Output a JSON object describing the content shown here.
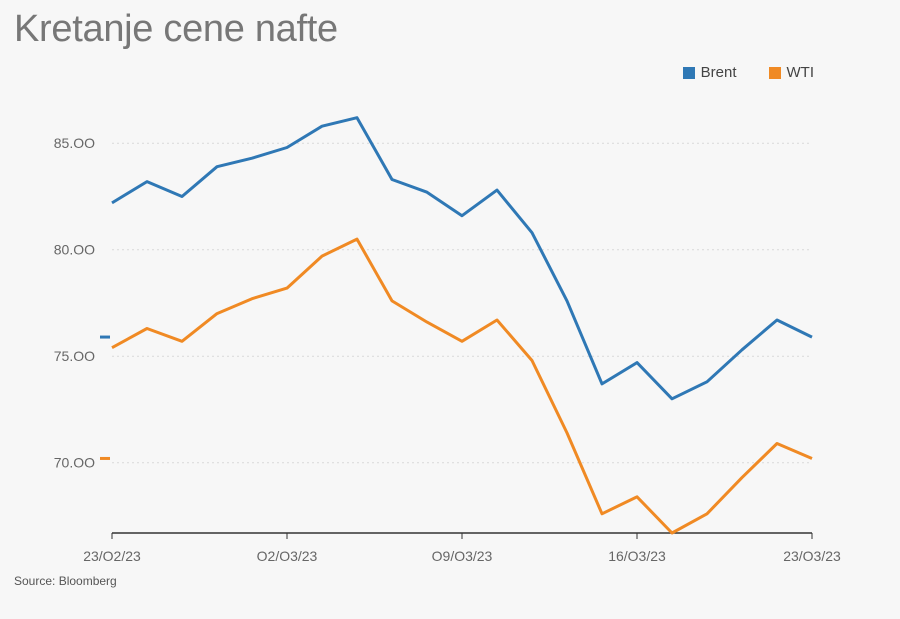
{
  "title": "Kretanje cene nafte",
  "source": "Source: Bloomberg",
  "chart_data": {
    "type": "line",
    "title": "Kretanje cene nafte",
    "x": [
      "23/02/23",
      "24/02/23",
      "27/02/23",
      "28/02/23",
      "01/03/23",
      "02/03/23",
      "03/03/23",
      "06/03/23",
      "07/03/23",
      "08/03/23",
      "09/03/23",
      "10/03/23",
      "13/03/23",
      "14/03/23",
      "15/03/23",
      "16/03/23",
      "17/03/23",
      "20/03/23",
      "21/03/23",
      "22/03/23",
      "23/03/23"
    ],
    "x_tick_labels": [
      "23/O2/23",
      "O2/O3/23",
      "O9/O3/23",
      "16/O3/23",
      "23/O3/23"
    ],
    "y_tick_labels": [
      "85.OO",
      "80.OO",
      "75.OO",
      "70.OO"
    ],
    "y_ticks": [
      85,
      80,
      75,
      70
    ],
    "ylim": [
      66.7,
      87.5
    ],
    "grid": true,
    "legend_position": "top-right",
    "series": [
      {
        "name": "Brent",
        "color": "#2f78b5",
        "values": [
          82.2,
          83.2,
          82.5,
          83.9,
          84.3,
          84.8,
          85.8,
          86.2,
          83.3,
          82.7,
          81.6,
          82.8,
          80.8,
          77.6,
          73.7,
          74.7,
          73.0,
          73.8,
          75.3,
          76.7,
          75.9
        ],
        "last_value_marker": 75.9
      },
      {
        "name": "WTI",
        "color": "#f08a24",
        "values": [
          75.4,
          76.3,
          75.7,
          77.0,
          77.7,
          78.2,
          79.7,
          80.5,
          77.6,
          76.6,
          75.7,
          76.7,
          74.8,
          71.4,
          67.6,
          68.4,
          66.7,
          67.6,
          69.3,
          70.9,
          70.2
        ],
        "last_value_marker": 70.2
      }
    ]
  }
}
